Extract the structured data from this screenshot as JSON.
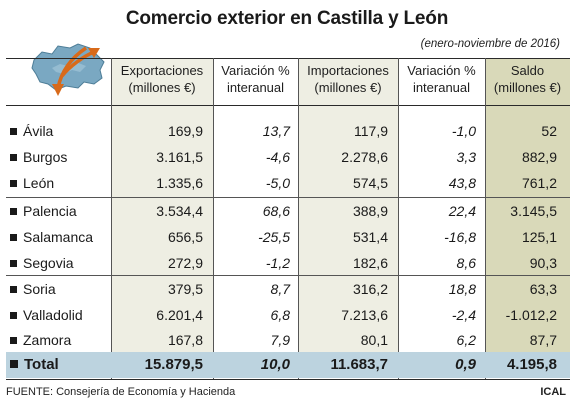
{
  "title": "Comercio exterior en Castilla y León",
  "subtitle": "(enero-noviembre de 2016)",
  "headers": {
    "exportaciones": [
      "Exportaciones",
      "(millones €)"
    ],
    "var_exp": [
      "Variación %",
      "interanual"
    ],
    "importaciones": [
      "Importaciones",
      "(millones €)"
    ],
    "var_imp": [
      "Variación %",
      "interanual"
    ],
    "saldo": [
      "Saldo",
      "(millones €)"
    ]
  },
  "rows": [
    {
      "name": "Ávila",
      "exp": "169,9",
      "vexp": "13,7",
      "imp": "117,9",
      "vimp": "-1,0",
      "saldo": "52"
    },
    {
      "name": "Burgos",
      "exp": "3.161,5",
      "vexp": "-4,6",
      "imp": "2.278,6",
      "vimp": "3,3",
      "saldo": "882,9"
    },
    {
      "name": "León",
      "exp": "1.335,6",
      "vexp": "-5,0",
      "imp": "574,5",
      "vimp": "43,8",
      "saldo": "761,2"
    },
    {
      "name": "Palencia",
      "exp": "3.534,4",
      "vexp": "68,6",
      "imp": "388,9",
      "vimp": "22,4",
      "saldo": "3.145,5"
    },
    {
      "name": "Salamanca",
      "exp": "656,5",
      "vexp": "-25,5",
      "imp": "531,4",
      "vimp": "-16,8",
      "saldo": "125,1"
    },
    {
      "name": "Segovia",
      "exp": "272,9",
      "vexp": "-1,2",
      "imp": "182,6",
      "vimp": "8,6",
      "saldo": "90,3"
    },
    {
      "name": "Soria",
      "exp": "379,5",
      "vexp": "8,7",
      "imp": "316,2",
      "vimp": "18,8",
      "saldo": "63,3"
    },
    {
      "name": "Valladolid",
      "exp": "6.201,4",
      "vexp": "6,8",
      "imp": "7.213,6",
      "vimp": "-2,4",
      "saldo": "-1.012,2"
    },
    {
      "name": "Zamora",
      "exp": "167,8",
      "vexp": "7,9",
      "imp": "80,1",
      "vimp": "6,2",
      "saldo": "87,7"
    }
  ],
  "total": {
    "name": "Total",
    "exp": "15.879,5",
    "vexp": "10,0",
    "imp": "11.683,7",
    "vimp": "0,9",
    "saldo": "4.195,8"
  },
  "footer": "FUENTE: Consejería de Economía y Hacienda",
  "credit": "ICAL",
  "icon": "region-map-with-arrows-icon",
  "colors": {
    "band": "#eeeee3",
    "saldo_band": "#d9d9b9",
    "total_row": "#bcd3df",
    "map_fill": "#7aa8c2",
    "arrow": "#d86a1a"
  }
}
